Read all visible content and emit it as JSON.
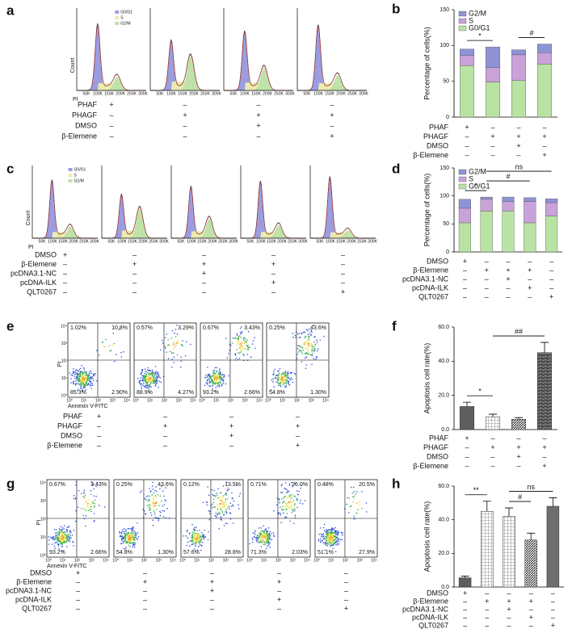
{
  "histograms": [
    {
      "letter": "a",
      "x_label": "PI",
      "y_label": "Count",
      "legend": [
        "G0/G1",
        "S",
        "G2/M"
      ],
      "colors": [
        "#9a9ee0",
        "#ecebb0",
        "#bfe2a8"
      ],
      "x_ticks": [
        "50K",
        "100K",
        "150K",
        "200K",
        "250K",
        "300K"
      ],
      "treatments": [
        {
          "label": "PHAF",
          "signs": [
            "+",
            "–",
            "–",
            "–"
          ]
        },
        {
          "label": "PHAGF",
          "signs": [
            "–",
            "+",
            "+",
            "+"
          ]
        },
        {
          "label": "DMSO",
          "signs": [
            "–",
            "–",
            "+",
            "–"
          ]
        },
        {
          "label": "β-Elemene",
          "signs": [
            "–",
            "–",
            "–",
            "+"
          ]
        }
      ]
    },
    {
      "letter": "c",
      "x_label": "PI",
      "y_label": "Count",
      "legend": [
        "G0/G1",
        "S",
        "G2/M"
      ],
      "colors": [
        "#9a9ee0",
        "#ecebb0",
        "#bfe2a8"
      ],
      "x_ticks": [
        "50K",
        "100K",
        "150K",
        "200K",
        "250K",
        "300K"
      ],
      "treatments": [
        {
          "label": "DMSO",
          "signs": [
            "+",
            "–",
            "–",
            "–",
            "–"
          ]
        },
        {
          "label": "β-Elemene",
          "signs": [
            "–",
            "+",
            "+",
            "+",
            "–"
          ]
        },
        {
          "label": "pcDNA3.1-NC",
          "signs": [
            "–",
            "–",
            "+",
            "–",
            "–"
          ]
        },
        {
          "label": "pcDNA-ILK",
          "signs": [
            "–",
            "–",
            "–",
            "+",
            "–"
          ]
        },
        {
          "label": "QLT0267",
          "signs": [
            "–",
            "–",
            "–",
            "–",
            "+"
          ]
        }
      ]
    }
  ],
  "flow": [
    {
      "letter": "e",
      "x_label": "Annexin V-FITC",
      "y_label": "PI",
      "axis_ticks": [
        "10⁰",
        "10¹",
        "10²",
        "10³",
        "10⁴"
      ],
      "quadrants": [
        [
          "1.02%",
          "10.8%",
          "85.3%",
          "2.90%"
        ],
        [
          "0.57%",
          "3.29%",
          "88.9%",
          "4.27%"
        ],
        [
          "0.67%",
          "3.43%",
          "93.2%",
          "2.66%"
        ],
        [
          "0.25%",
          "43.6%",
          "54.8%",
          "1.30%"
        ]
      ],
      "treatments": [
        {
          "label": "PHAF",
          "signs": [
            "+",
            "–",
            "–",
            "–"
          ]
        },
        {
          "label": "PHAGF",
          "signs": [
            "–",
            "+",
            "+",
            "+"
          ]
        },
        {
          "label": "DMSO",
          "signs": [
            "–",
            "–",
            "+",
            "–"
          ]
        },
        {
          "label": "β-Elemene",
          "signs": [
            "–",
            "–",
            "–",
            "+"
          ]
        }
      ]
    },
    {
      "letter": "g",
      "x_label": "Annexin V-FITC",
      "y_label": "PI",
      "axis_ticks": [
        "10⁰",
        "10¹",
        "10²",
        "10³",
        "10⁴"
      ],
      "quadrants": [
        [
          "0.67%",
          "3.43%",
          "93.2%",
          "2.66%"
        ],
        [
          "0.25%",
          "43.6%",
          "54.8%",
          "1.30%"
        ],
        [
          "0.12%",
          "13.5%",
          "57.6%",
          "28.8%"
        ],
        [
          "0.71%",
          "26.0%",
          "71.3%",
          "2.03%"
        ],
        [
          "0.48%",
          "20.5%",
          "51.1%",
          "27.9%"
        ]
      ],
      "treatments": [
        {
          "label": "DMSO",
          "signs": [
            "+",
            "–",
            "–",
            "–",
            "–"
          ]
        },
        {
          "label": "β-Elemene",
          "signs": [
            "–",
            "+",
            "+",
            "+",
            "–"
          ]
        },
        {
          "label": "pcDNA3.1-NC",
          "signs": [
            "–",
            "–",
            "+",
            "–",
            "–"
          ]
        },
        {
          "label": "pcDNA-ILK",
          "signs": [
            "–",
            "–",
            "–",
            "+",
            "–"
          ]
        },
        {
          "label": "QLT0267",
          "signs": [
            "–",
            "–",
            "–",
            "–",
            "+"
          ]
        }
      ]
    }
  ],
  "chart_data": [
    {
      "letter": "b",
      "type": "bar",
      "stacked": true,
      "y_label": "Percentage of cells(%)",
      "categories": [
        null,
        null,
        null,
        null
      ],
      "series": [
        {
          "name": "G0/G1",
          "color": "#b9e3a3",
          "values": [
            72,
            49,
            51,
            74
          ]
        },
        {
          "name": "S",
          "color": "#c9a2d9",
          "values": [
            14,
            20,
            36,
            16
          ]
        },
        {
          "name": "G2/M",
          "color": "#8f93d6",
          "values": [
            9,
            29,
            7,
            12
          ]
        }
      ],
      "ylim": [
        0,
        150
      ],
      "yticks": [
        0,
        50,
        100,
        150
      ],
      "legend": "top-left",
      "annotations": [
        {
          "text": "*",
          "from": 0,
          "to": 1
        },
        {
          "text": "#",
          "from": 2,
          "to": 3
        }
      ],
      "treatments": [
        {
          "label": "PHAF",
          "signs": [
            "+",
            "–",
            "–",
            "–"
          ]
        },
        {
          "label": "PHAGF",
          "signs": [
            "–",
            "+",
            "+",
            "+"
          ]
        },
        {
          "label": "DMSO",
          "signs": [
            "–",
            "–",
            "+",
            "–"
          ]
        },
        {
          "label": "β-Elemene",
          "signs": [
            "–",
            "–",
            "–",
            "+"
          ]
        }
      ]
    },
    {
      "letter": "d",
      "type": "bar",
      "stacked": true,
      "y_label": "Percentage of cells(%)",
      "categories": [
        null,
        null,
        null,
        null,
        null
      ],
      "series": [
        {
          "name": "G0/G1",
          "color": "#b9e3a3",
          "values": [
            52,
            73,
            73,
            52,
            64
          ]
        },
        {
          "name": "S",
          "color": "#c9a2d9",
          "values": [
            26,
            21,
            17,
            38,
            24
          ]
        },
        {
          "name": "G2/M",
          "color": "#8f93d6",
          "values": [
            16,
            4,
            8,
            7,
            7
          ]
        }
      ],
      "ylim": [
        0,
        150
      ],
      "yticks": [
        0,
        50,
        100,
        150
      ],
      "legend": "top-left",
      "annotations": [
        {
          "text": "*",
          "from": 0,
          "to": 1
        },
        {
          "text": "#",
          "from": 1,
          "to": 3
        },
        {
          "text": "ns",
          "from": 1,
          "to": 4
        }
      ],
      "treatments": [
        {
          "label": "DMSO",
          "signs": [
            "+",
            "–",
            "–",
            "–",
            "–"
          ]
        },
        {
          "label": "β-Elemene",
          "signs": [
            "–",
            "+",
            "+",
            "+",
            "–"
          ]
        },
        {
          "label": "pcDNA3.1-NC",
          "signs": [
            "–",
            "–",
            "+",
            "–",
            "–"
          ]
        },
        {
          "label": "pcDNA-ILK",
          "signs": [
            "–",
            "–",
            "–",
            "+",
            "–"
          ]
        },
        {
          "label": "QLT0267",
          "signs": [
            "–",
            "–",
            "–",
            "–",
            "+"
          ]
        }
      ]
    },
    {
      "letter": "f",
      "type": "bar",
      "y_label": "Apoptosis cell rate(%)",
      "categories": [
        null,
        null,
        null,
        null
      ],
      "values": [
        13.5,
        7.5,
        6,
        45
      ],
      "errors": [
        2.5,
        1.5,
        1,
        6
      ],
      "fills": [
        "#5e5e5e",
        "url(#p-check)",
        "url(#p-hatch)",
        "url(#p-brick)"
      ],
      "ylim": [
        0,
        60
      ],
      "yticks": [
        {
          "value": 0,
          "label": "0.0"
        },
        {
          "value": 20,
          "label": "20.0"
        },
        {
          "value": 40,
          "label": "40.0"
        },
        {
          "value": 60,
          "label": "60.0"
        }
      ],
      "annotations": [
        {
          "text": "*",
          "from": 0,
          "to": 1
        },
        {
          "text": "##",
          "from": 1,
          "to": 3
        }
      ],
      "treatments": [
        {
          "label": "PHAF",
          "signs": [
            "+",
            "–",
            "–",
            "–"
          ]
        },
        {
          "label": "PHAGF",
          "signs": [
            "–",
            "+",
            "+",
            "+"
          ]
        },
        {
          "label": "DMSO",
          "signs": [
            "–",
            "–",
            "+",
            "–"
          ]
        },
        {
          "label": "β-Elemene",
          "signs": [
            "–",
            "–",
            "–",
            "+"
          ]
        }
      ]
    },
    {
      "letter": "h",
      "type": "bar",
      "y_label": "Apoptosis cell rate(%)",
      "categories": [
        null,
        null,
        null,
        null,
        null
      ],
      "values": [
        5.5,
        45,
        42,
        28,
        48
      ],
      "errors": [
        1,
        6,
        5,
        4,
        5
      ],
      "fills": [
        "#5e5e5e",
        "url(#p-check)",
        "url(#p-check)",
        "url(#p-hatch)",
        "#6e6e6e"
      ],
      "ylim": [
        0,
        60
      ],
      "yticks": [
        {
          "value": 0,
          "label": "0.0"
        },
        {
          "value": 20,
          "label": "20.0"
        },
        {
          "value": 40,
          "label": "40.0"
        },
        {
          "value": 60,
          "label": "60.0"
        }
      ],
      "annotations": [
        {
          "text": "**",
          "from": 0,
          "to": 1
        },
        {
          "text": "#",
          "from": 2,
          "to": 3
        },
        {
          "text": "ns",
          "from": 2,
          "to": 4
        }
      ],
      "treatments": [
        {
          "label": "DMSO",
          "signs": [
            "+",
            "–",
            "–",
            "–",
            "–"
          ]
        },
        {
          "label": "β-Elemene",
          "signs": [
            "–",
            "+",
            "+",
            "+",
            "–"
          ]
        },
        {
          "label": "pcDNA3.1-NC",
          "signs": [
            "–",
            "–",
            "+",
            "–",
            "–"
          ]
        },
        {
          "label": "pcDNA-ILK",
          "signs": [
            "–",
            "–",
            "–",
            "+",
            "–"
          ]
        },
        {
          "label": "QLT0267",
          "signs": [
            "–",
            "–",
            "–",
            "–",
            "+"
          ]
        }
      ]
    }
  ]
}
